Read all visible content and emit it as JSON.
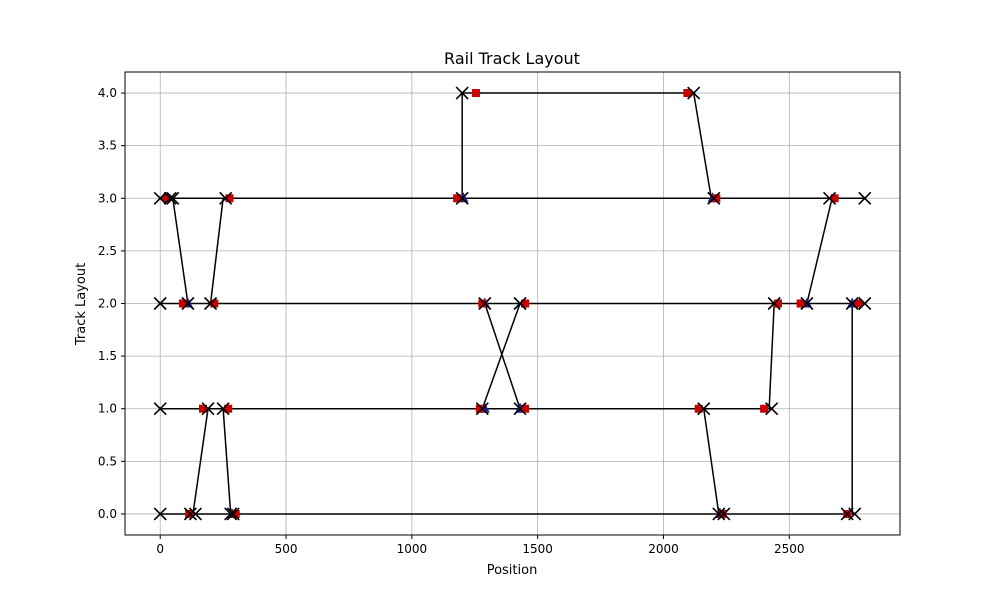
{
  "chart_data": {
    "type": "line",
    "title": "Rail Track Layout",
    "xlabel": "Position",
    "ylabel": "Track Layout",
    "xlim": [
      -140,
      2940
    ],
    "ylim": [
      -0.2,
      4.2
    ],
    "xticks": [
      0,
      500,
      1000,
      1500,
      2000,
      2500
    ],
    "yticks": [
      0.0,
      0.5,
      1.0,
      1.5,
      2.0,
      2.5,
      3.0,
      3.5,
      4.0
    ],
    "grid": true,
    "colors": {
      "line": "#000000",
      "endpoint_marker": "#000000",
      "red_marker": "#cc0000",
      "blue_marker": "#1f1f8f",
      "grid": "#b0b0b0"
    },
    "tracks": [
      {
        "y": 0,
        "x_start": 0,
        "x_end": 2760
      },
      {
        "y": 1,
        "x_start": 0,
        "x_end": 2430
      },
      {
        "y": 2,
        "x_start": 0,
        "x_end": 2800
      },
      {
        "y": 3,
        "x_start": 0,
        "x_end": 2800
      },
      {
        "y": 4,
        "x_start": 1200,
        "x_end": 2120
      }
    ],
    "connections": [
      [
        50,
        3,
        110,
        2
      ],
      [
        200,
        2,
        250,
        3
      ],
      [
        130,
        0,
        190,
        1
      ],
      [
        250,
        1,
        280,
        0
      ],
      [
        1280,
        1,
        1430,
        2
      ],
      [
        1290,
        2,
        1430,
        1
      ],
      [
        1200,
        3,
        1200,
        4
      ],
      [
        2120,
        4,
        2190,
        3
      ],
      [
        2160,
        1,
        2220,
        0
      ],
      [
        2420,
        1,
        2440,
        2
      ],
      [
        2570,
        2,
        2670,
        3
      ],
      [
        2750,
        2,
        2750,
        0
      ]
    ],
    "x_markers": [
      [
        0,
        3
      ],
      [
        40,
        3
      ],
      [
        50,
        3
      ],
      [
        260,
        3
      ],
      [
        1200,
        3
      ],
      [
        2200,
        3
      ],
      [
        2660,
        3
      ],
      [
        2800,
        3
      ],
      [
        1200,
        4
      ],
      [
        2120,
        4
      ],
      [
        0,
        2
      ],
      [
        110,
        2
      ],
      [
        200,
        2
      ],
      [
        1290,
        2
      ],
      [
        1430,
        2
      ],
      [
        2440,
        2
      ],
      [
        2570,
        2
      ],
      [
        2750,
        2
      ],
      [
        2800,
        2
      ],
      [
        0,
        1
      ],
      [
        190,
        1
      ],
      [
        250,
        1
      ],
      [
        1280,
        1
      ],
      [
        1430,
        1
      ],
      [
        2160,
        1
      ],
      [
        2430,
        1
      ],
      [
        0,
        0
      ],
      [
        120,
        0
      ],
      [
        140,
        0
      ],
      [
        280,
        0
      ],
      [
        290,
        0
      ],
      [
        2220,
        0
      ],
      [
        2240,
        0
      ],
      [
        2730,
        0
      ],
      [
        2760,
        0
      ]
    ],
    "red_markers": [
      [
        25,
        3
      ],
      [
        275,
        3
      ],
      [
        1180,
        3
      ],
      [
        2210,
        3
      ],
      [
        2680,
        3
      ],
      [
        1255,
        4
      ],
      [
        2095,
        4
      ],
      [
        90,
        2
      ],
      [
        215,
        2
      ],
      [
        1280,
        2
      ],
      [
        1450,
        2
      ],
      [
        2455,
        2
      ],
      [
        2545,
        2
      ],
      [
        2775,
        2
      ],
      [
        170,
        1
      ],
      [
        270,
        1
      ],
      [
        1270,
        1
      ],
      [
        1450,
        1
      ],
      [
        2140,
        1
      ],
      [
        2400,
        1
      ],
      [
        115,
        0
      ],
      [
        300,
        0
      ],
      [
        2235,
        0
      ],
      [
        2730,
        0
      ]
    ],
    "blue_markers": [
      [
        1205,
        3
      ],
      [
        2195,
        3
      ],
      [
        110,
        2
      ],
      [
        1290,
        2
      ],
      [
        2570,
        2
      ],
      [
        2750,
        2
      ],
      [
        1290,
        1
      ],
      [
        1430,
        1
      ],
      [
        285,
        0
      ],
      [
        2225,
        0
      ]
    ]
  }
}
